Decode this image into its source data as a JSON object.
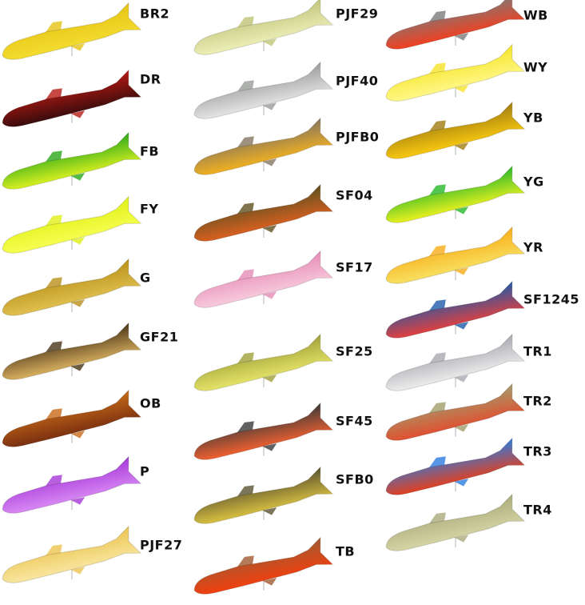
{
  "columns": [
    {
      "labels": [
        "BR2",
        "DR",
        "FB",
        "FY",
        "G",
        "GF21",
        "OB",
        "P",
        "PJF27"
      ]
    },
    {
      "labels": [
        "PJF29",
        "PJF40",
        "PJFB0",
        "SF04",
        "SF17",
        "SF25",
        "SF45",
        "SFB0",
        "TB"
      ]
    },
    {
      "labels": [
        "WB",
        "WY",
        "YB",
        "YG",
        "YR",
        "SF1245",
        "TR1",
        "TR2",
        "TR3",
        "TR4"
      ]
    }
  ]
}
